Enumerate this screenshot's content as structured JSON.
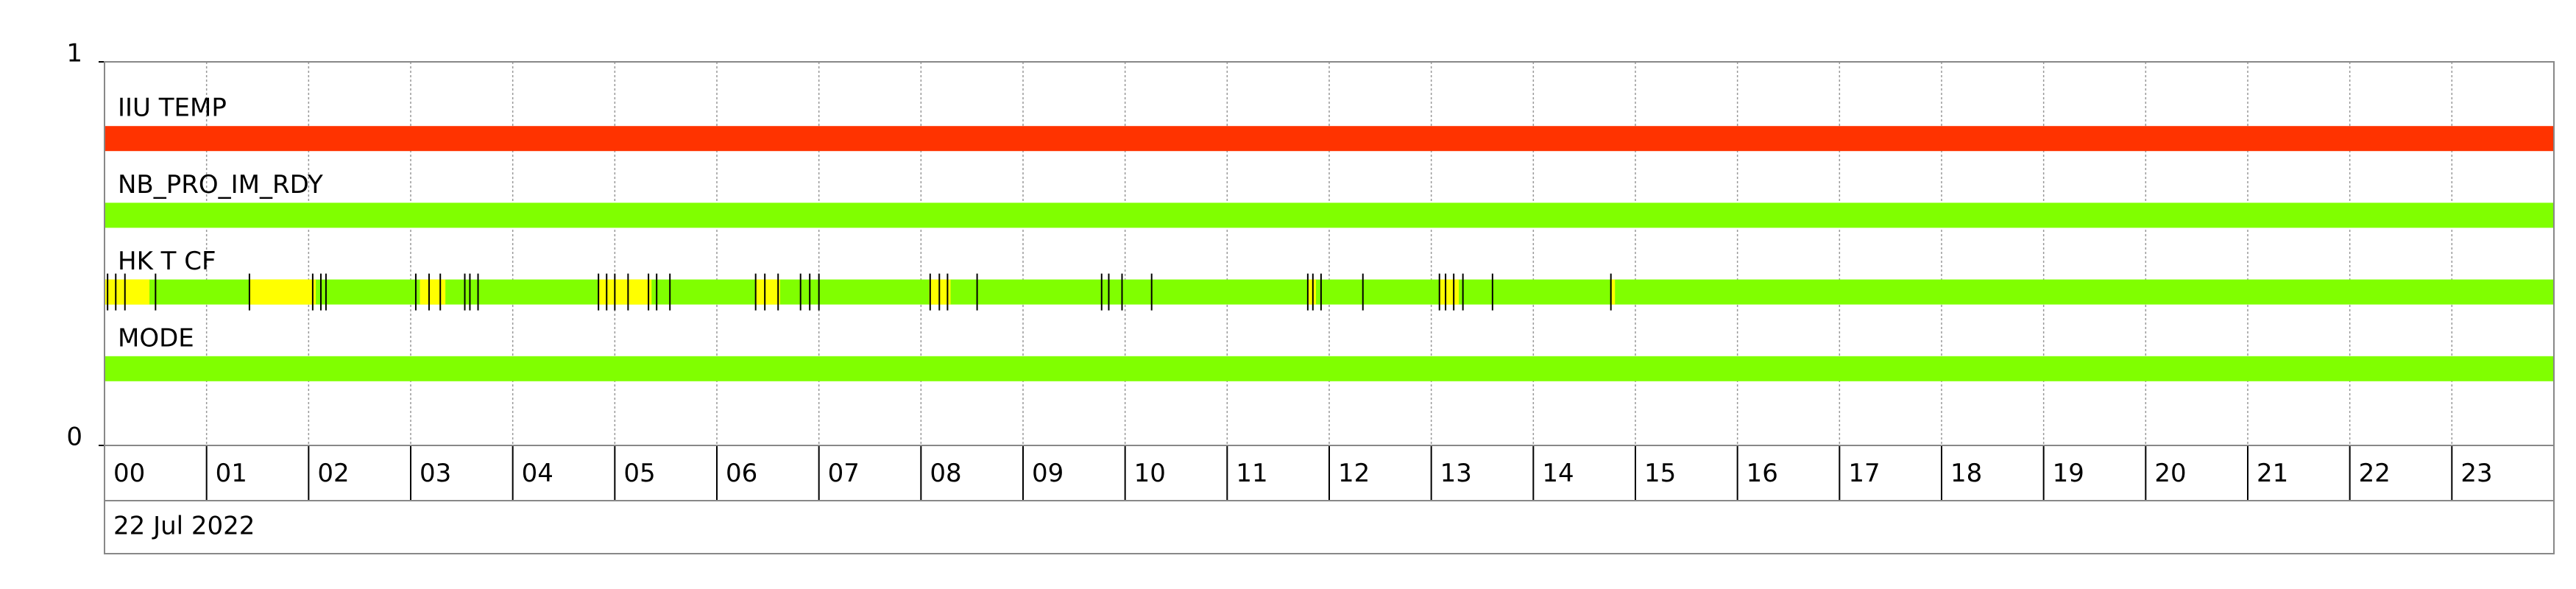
{
  "chart_data": {
    "type": "timeline",
    "xlim": [
      0,
      24
    ],
    "xticks": [
      {
        "value": 0,
        "label": "00"
      },
      {
        "value": 1,
        "label": "01"
      },
      {
        "value": 2,
        "label": "02"
      },
      {
        "value": 3,
        "label": "03"
      },
      {
        "value": 4,
        "label": "04"
      },
      {
        "value": 5,
        "label": "05"
      },
      {
        "value": 6,
        "label": "06"
      },
      {
        "value": 7,
        "label": "07"
      },
      {
        "value": 8,
        "label": "08"
      },
      {
        "value": 9,
        "label": "09"
      },
      {
        "value": 10,
        "label": "10"
      },
      {
        "value": 11,
        "label": "11"
      },
      {
        "value": 12,
        "label": "12"
      },
      {
        "value": 13,
        "label": "13"
      },
      {
        "value": 14,
        "label": "14"
      },
      {
        "value": 15,
        "label": "15"
      },
      {
        "value": 16,
        "label": "16"
      },
      {
        "value": 17,
        "label": "17"
      },
      {
        "value": 18,
        "label": "18"
      },
      {
        "value": 19,
        "label": "19"
      },
      {
        "value": 20,
        "label": "20"
      },
      {
        "value": 21,
        "label": "21"
      },
      {
        "value": 22,
        "label": "22"
      },
      {
        "value": 23,
        "label": "23"
      }
    ],
    "ylim": [
      0,
      1
    ],
    "yticks": [
      0,
      1
    ],
    "grid": true,
    "date": "22 Jul 2022",
    "series": [
      {
        "name": "IIU TEMP",
        "color": "#ff3300",
        "y": 0.8
      },
      {
        "name": "NB_PRO_IM_RDY",
        "color": "#80ff00",
        "y": 0.6
      },
      {
        "name": "HK T CF",
        "color": "#80ff00",
        "y": 0.4,
        "alerts": {
          "color": "#ffff00",
          "intervals": [
            [
              0.0,
              0.44
            ],
            [
              1.42,
              2.07
            ],
            [
              3.09,
              3.34
            ],
            [
              4.84,
              5.36
            ],
            [
              6.38,
              6.62
            ],
            [
              8.08,
              8.29
            ],
            [
              11.79,
              11.87
            ],
            [
              13.08,
              13.27
            ],
            [
              14.76,
              14.8
            ]
          ]
        },
        "event_color": "#000000",
        "events": [
          0.03,
          0.11,
          0.2,
          0.5,
          1.42,
          2.04,
          2.12,
          2.17,
          3.05,
          3.18,
          3.29,
          3.53,
          3.58,
          3.66,
          4.84,
          4.92,
          5.0,
          5.13,
          5.33,
          5.41,
          5.54,
          6.38,
          6.47,
          6.6,
          6.82,
          6.91,
          7.0,
          8.09,
          8.18,
          8.26,
          8.55,
          9.77,
          9.84,
          9.97,
          10.26,
          11.79,
          11.84,
          11.92,
          12.33,
          13.08,
          13.14,
          13.22,
          13.31,
          13.6,
          14.76
        ]
      },
      {
        "name": "MODE",
        "color": "#80ff00",
        "y": 0.2
      }
    ]
  }
}
